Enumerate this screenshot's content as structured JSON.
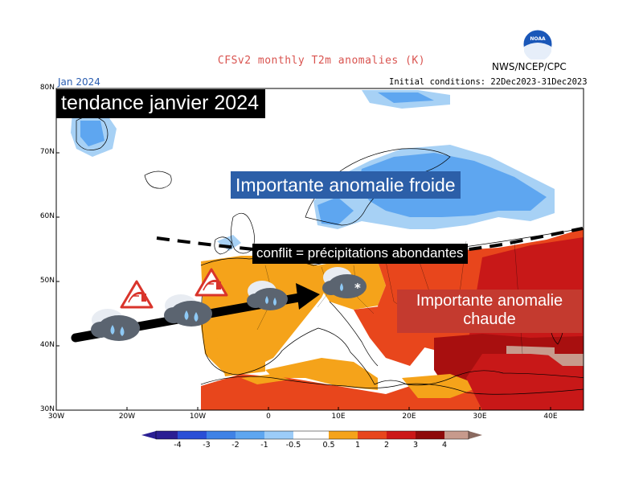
{
  "header": {
    "title": "CFSv2 monthly T2m anomalies (K)",
    "month": "Jan 2024",
    "initial_conditions": "Initial conditions: 22Dec2023-31Dec2023",
    "organization": "NWS/NCEP/CPC",
    "logo_text": "NOAA"
  },
  "axes": {
    "lat_labels": [
      "80N",
      "70N",
      "60N",
      "50N",
      "40N",
      "30N"
    ],
    "lon_labels": [
      "30W",
      "20W",
      "10W",
      "0",
      "10E",
      "20E",
      "30E",
      "40E"
    ]
  },
  "overlay": {
    "headline": "tendance janvier 2024",
    "cold_label": "Importante anomalie froide",
    "warm_label_line1": "Importante anomalie",
    "warm_label_line2": "chaude",
    "conflict_label": "conflit = précipitations abondantes"
  },
  "colorbar": {
    "labels": [
      "-4",
      "-3",
      "-2",
      "-1",
      "-0.5",
      "0.5",
      "1",
      "2",
      "3",
      "4"
    ],
    "colors": [
      "#2b1f93",
      "#2a4fd6",
      "#3f82e6",
      "#5ea6f0",
      "#9cccf8",
      "#ffffff",
      "#f5a31a",
      "#e8461c",
      "#cc1717",
      "#8e0a0a",
      "#c79a8c",
      "#8a6a60"
    ]
  },
  "colors": {
    "cold_light": "#a7d1f5",
    "cold_mid": "#5ea6f0",
    "warm_light": "#f5a31a",
    "warm_mid": "#e8461c",
    "warm_dark": "#c81818"
  },
  "icons": [
    "warning-triangle-icon",
    "rain-cloud-icon",
    "snow-rain-cloud-icon",
    "black-arrow"
  ]
}
